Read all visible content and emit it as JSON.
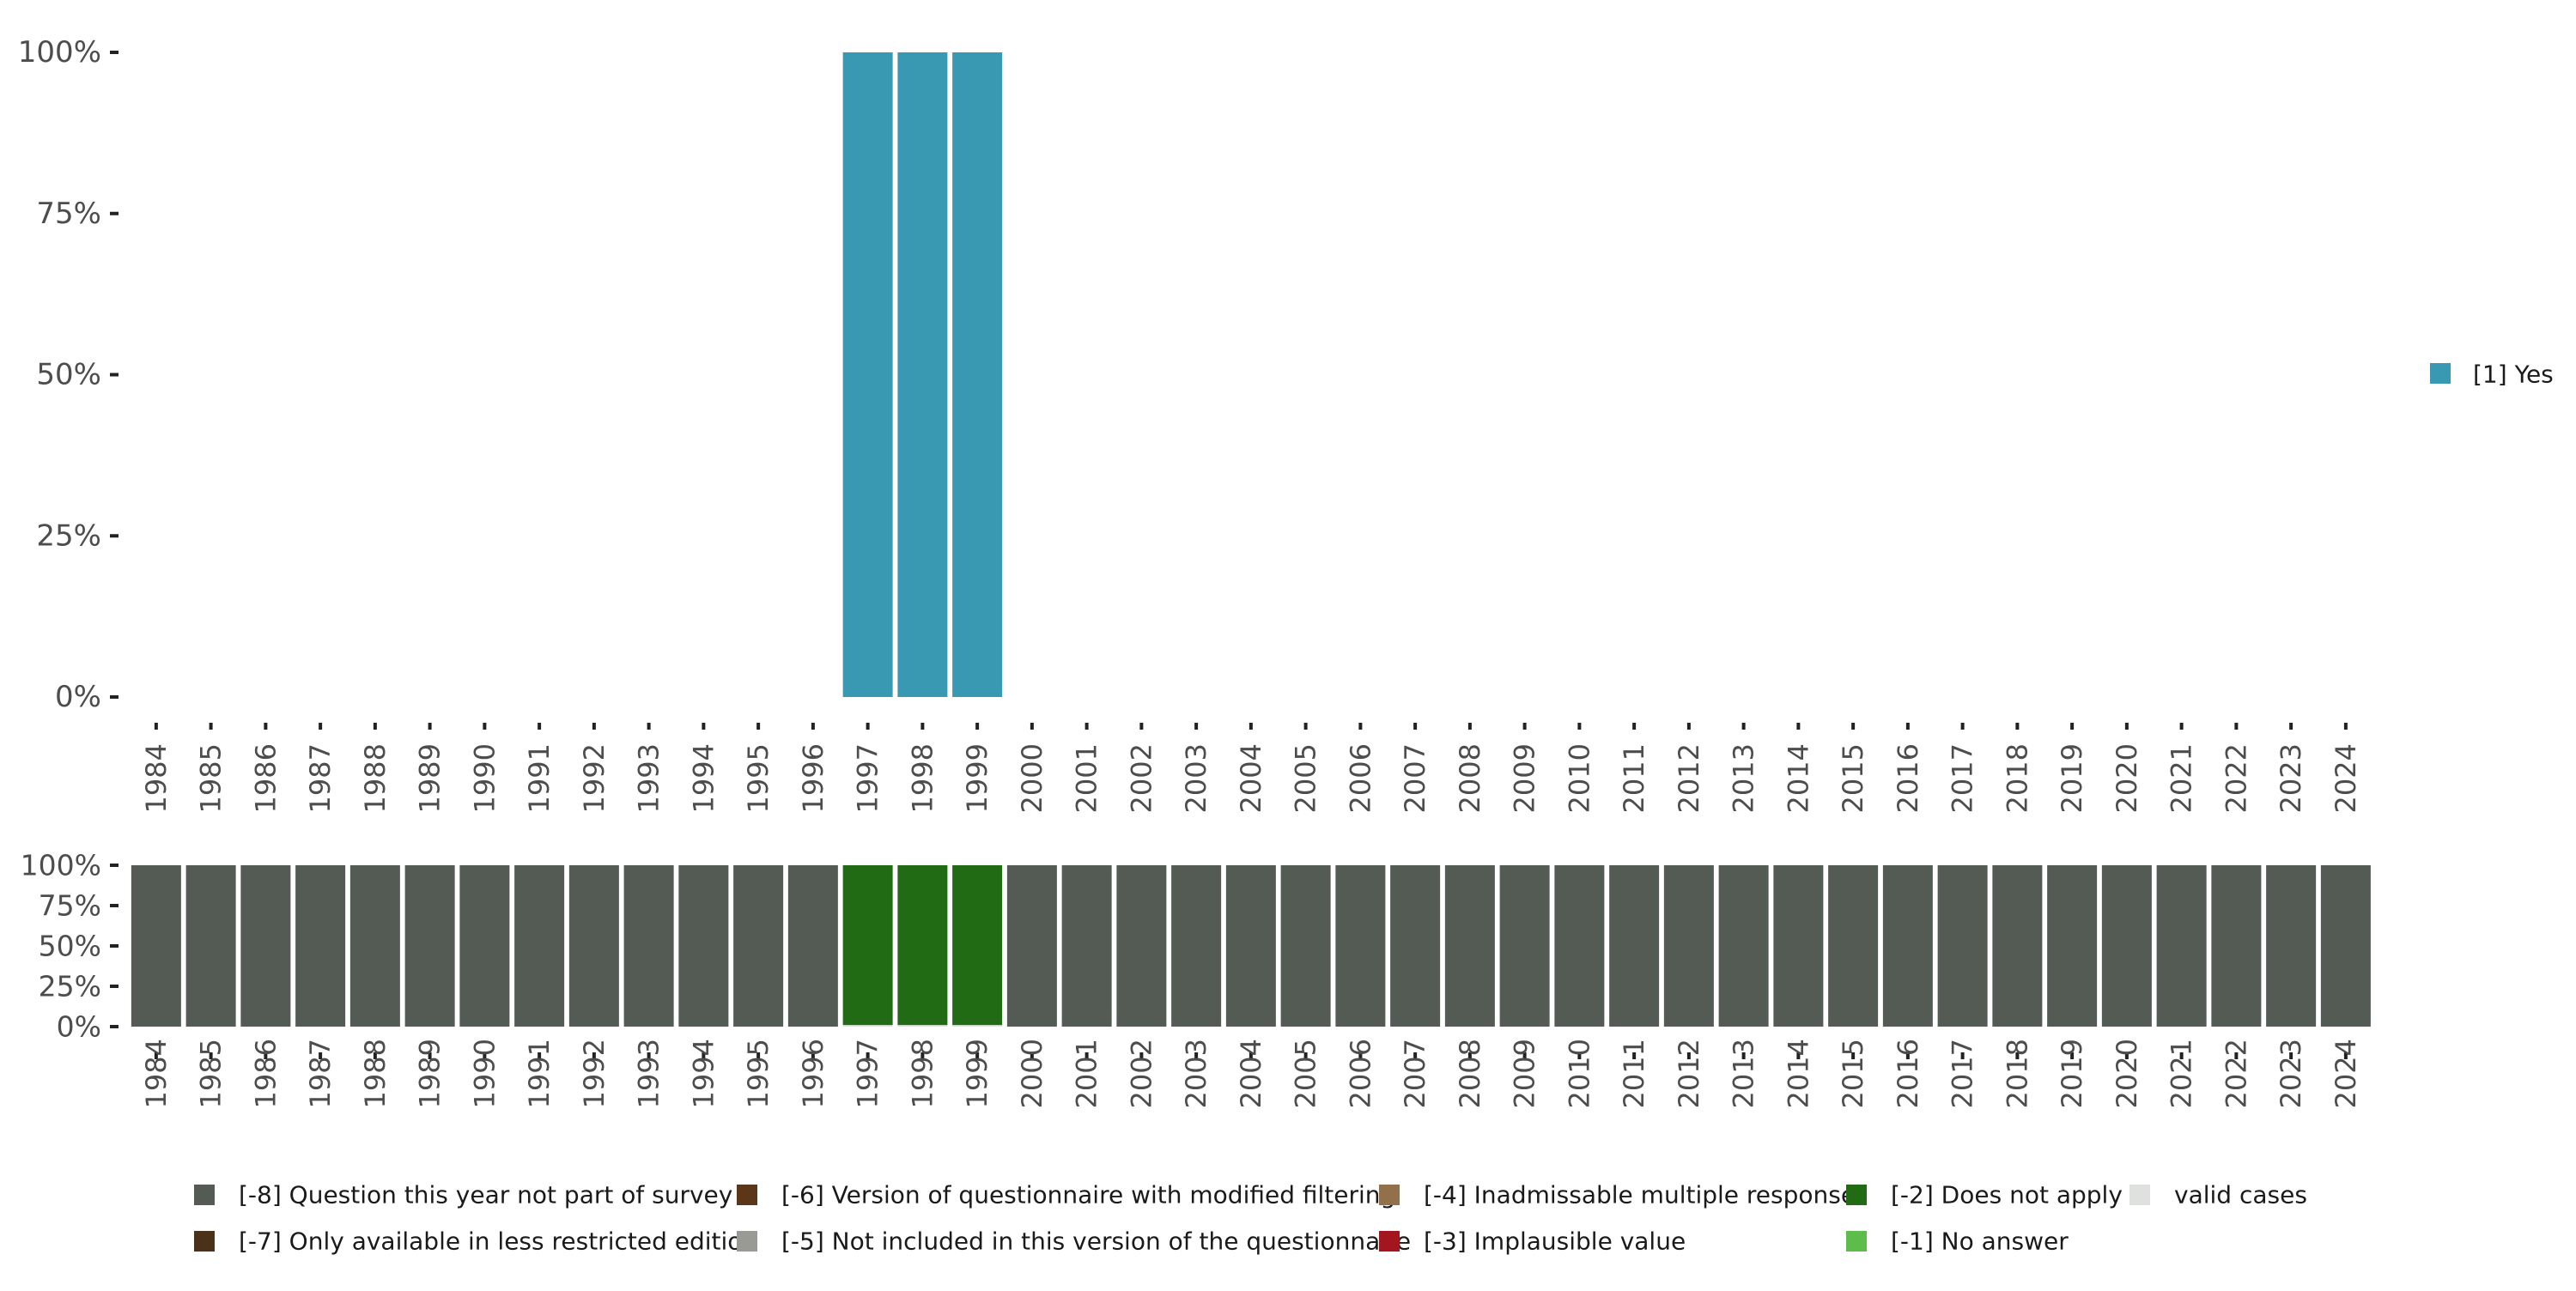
{
  "chart_data": [
    {
      "type": "bar",
      "title": "",
      "xlabel": "",
      "ylabel": "",
      "ylim": [
        0,
        1
      ],
      "y_ticks": [
        "0%",
        "25%",
        "50%",
        "75%",
        "100%"
      ],
      "categories": [
        "1984",
        "1985",
        "1986",
        "1987",
        "1988",
        "1989",
        "1990",
        "1991",
        "1992",
        "1993",
        "1994",
        "1995",
        "1996",
        "1997",
        "1998",
        "1999",
        "2000",
        "2001",
        "2002",
        "2003",
        "2004",
        "2005",
        "2006",
        "2007",
        "2008",
        "2009",
        "2010",
        "2011",
        "2012",
        "2013",
        "2014",
        "2015",
        "2016",
        "2017",
        "2018",
        "2019",
        "2020",
        "2021",
        "2022",
        "2023",
        "2024"
      ],
      "series": [
        {
          "name": "[1] Yes",
          "color": "#3a99b2",
          "values": [
            0,
            0,
            0,
            0,
            0,
            0,
            0,
            0,
            0,
            0,
            0,
            0,
            0,
            1,
            1,
            1,
            0,
            0,
            0,
            0,
            0,
            0,
            0,
            0,
            0,
            0,
            0,
            0,
            0,
            0,
            0,
            0,
            0,
            0,
            0,
            0,
            0,
            0,
            0,
            0,
            0
          ]
        }
      ],
      "legend_position": "right"
    },
    {
      "type": "bar",
      "stacked": true,
      "title": "",
      "xlabel": "",
      "ylabel": "",
      "ylim": [
        0,
        1
      ],
      "y_ticks": [
        "0%",
        "25%",
        "50%",
        "75%",
        "100%"
      ],
      "categories": [
        "1984",
        "1985",
        "1986",
        "1987",
        "1988",
        "1989",
        "1990",
        "1991",
        "1992",
        "1993",
        "1994",
        "1995",
        "1996",
        "1997",
        "1998",
        "1999",
        "2000",
        "2001",
        "2002",
        "2003",
        "2004",
        "2005",
        "2006",
        "2007",
        "2008",
        "2009",
        "2010",
        "2011",
        "2012",
        "2013",
        "2014",
        "2015",
        "2016",
        "2017",
        "2018",
        "2019",
        "2020",
        "2021",
        "2022",
        "2023",
        "2024"
      ],
      "series": [
        {
          "name": "valid cases",
          "color": "#dfe1de",
          "values": [
            0,
            0,
            0,
            0,
            0,
            0,
            0,
            0,
            0,
            0,
            0,
            0,
            0,
            0.01,
            0.01,
            0.01,
            0,
            0,
            0,
            0,
            0,
            0,
            0,
            0,
            0,
            0,
            0,
            0,
            0,
            0,
            0,
            0,
            0,
            0,
            0,
            0,
            0,
            0,
            0,
            0,
            0
          ]
        },
        {
          "name": "[-2] Does not apply",
          "color": "#216b14",
          "values": [
            0,
            0,
            0,
            0,
            0,
            0,
            0,
            0,
            0,
            0,
            0,
            0,
            0,
            0.99,
            0.99,
            0.99,
            0,
            0,
            0,
            0,
            0,
            0,
            0,
            0,
            0,
            0,
            0,
            0,
            0,
            0,
            0,
            0,
            0,
            0,
            0,
            0,
            0,
            0,
            0,
            0,
            0
          ]
        },
        {
          "name": "[-8] Question this year not part of survey",
          "color": "#545b55",
          "values": [
            1,
            1,
            1,
            1,
            1,
            1,
            1,
            1,
            1,
            1,
            1,
            1,
            1,
            0,
            0,
            0,
            1,
            1,
            1,
            1,
            1,
            1,
            1,
            1,
            1,
            1,
            1,
            1,
            1,
            1,
            1,
            1,
            1,
            1,
            1,
            1,
            1,
            1,
            1,
            1,
            1
          ]
        }
      ],
      "legend_position": "bottom",
      "legend": [
        {
          "label": "[-8] Question this year not part of survey",
          "color": "#545b55"
        },
        {
          "label": "[-7] Only available in less restricted edition",
          "color": "#4a3218"
        },
        {
          "label": "[-6] Version of questionnaire with modified filtering",
          "color": "#5c3618"
        },
        {
          "label": "[-5] Not included in this version of the questionnaire",
          "color": "#989a93"
        },
        {
          "label": "[-4] Inadmissable multiple response",
          "color": "#93704c"
        },
        {
          "label": "[-3] Implausible value",
          "color": "#a4161d"
        },
        {
          "label": "[-2] Does not apply",
          "color": "#216b14"
        },
        {
          "label": "[-1] No answer",
          "color": "#5cbd4a"
        },
        {
          "label": "valid cases",
          "color": "#dfe1de"
        }
      ]
    }
  ]
}
